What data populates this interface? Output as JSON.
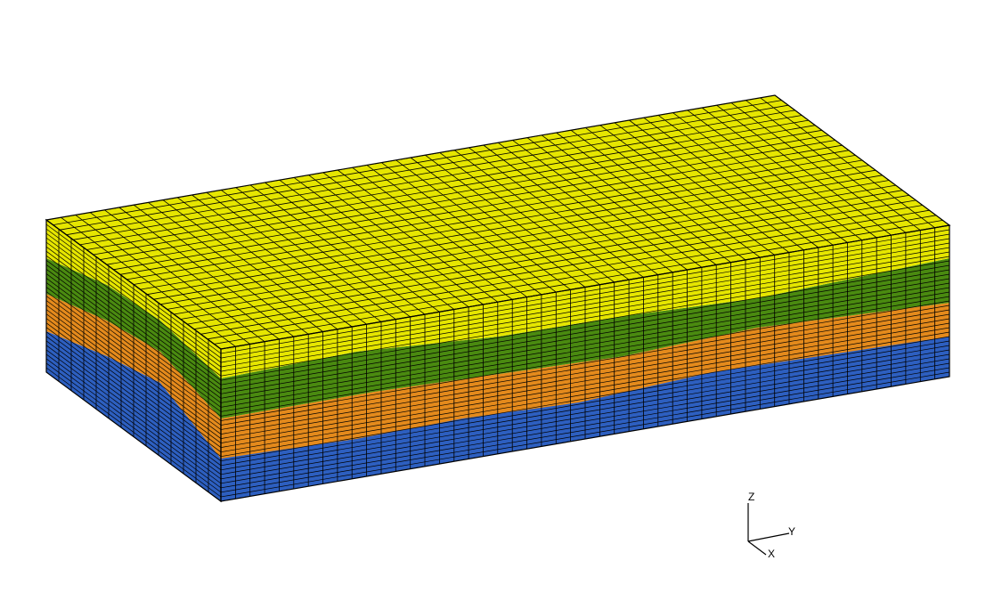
{
  "axes": {
    "z_label": "Z",
    "y_label": "Y",
    "x_label": "X"
  },
  "colors": {
    "top_layer": "#e6e600",
    "layer_green": "#4a8a10",
    "layer_orange": "#e48a1c",
    "layer_blue": "#2d5fc0",
    "grid_line": "#000000",
    "background": "#ffffff"
  }
}
